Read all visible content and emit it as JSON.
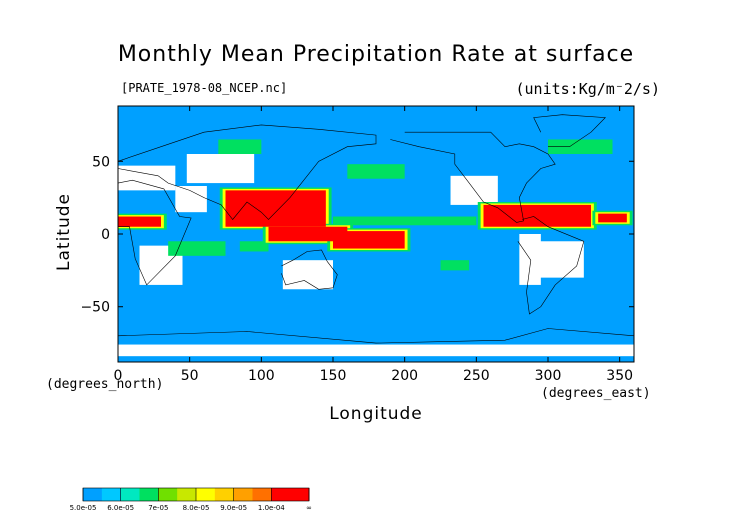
{
  "chart_data": {
    "type": "heatmap",
    "title": "Monthly Mean Precipitation Rate at surface",
    "source_label": "[PRATE_1978-08_NCEP.nc]",
    "units_label": "(units:Kg/m⁻2/s)",
    "xlabel": "Longitude",
    "ylabel": "Latitude",
    "x_unit_label": "(degrees_east)",
    "y_unit_label": "(degrees_north)",
    "xlim": [
      0,
      360
    ],
    "ylim": [
      -88,
      88
    ],
    "x_ticks": [
      0,
      50,
      100,
      150,
      200,
      250,
      300,
      350
    ],
    "y_ticks": [
      50,
      0,
      -50
    ],
    "colorbar": {
      "labels": [
        "5.0e-05",
        "6.0e-05",
        "7e-05",
        "8.0e-05",
        "9.0e-05",
        "1.0e-04",
        "∞"
      ],
      "colors": [
        "#00a0ff",
        "#00c8ff",
        "#00e8c0",
        "#00e060",
        "#70e000",
        "#c8e800",
        "#ffff00",
        "#ffd000",
        "#ffa000",
        "#ff7000",
        "#ff0000",
        "#ff0000"
      ],
      "below_min_color": "#ffffff"
    },
    "field_description_levels": {
      "background": "#00a0ff",
      "low": "#ffffff",
      "moderate": "#00e060",
      "high": "#ff0000"
    },
    "low_regions": [
      {
        "lon": [
          15,
          45
        ],
        "lat": [
          -35,
          -8
        ]
      },
      {
        "lon": [
          0,
          40
        ],
        "lat": [
          30,
          47
        ]
      },
      {
        "lon": [
          40,
          62
        ],
        "lat": [
          15,
          33
        ]
      },
      {
        "lon": [
          48,
          95
        ],
        "lat": [
          35,
          55
        ]
      },
      {
        "lon": [
          115,
          150
        ],
        "lat": [
          -38,
          -18
        ]
      },
      {
        "lon": [
          232,
          265
        ],
        "lat": [
          20,
          40
        ]
      },
      {
        "lon": [
          290,
          325
        ],
        "lat": [
          -30,
          -5
        ]
      },
      {
        "lon": [
          280,
          295
        ],
        "lat": [
          -35,
          0
        ]
      },
      {
        "lon": [
          0,
          360
        ],
        "lat": [
          -84,
          -76
        ]
      }
    ],
    "high_regions": [
      {
        "lon": [
          75,
          145
        ],
        "lat": [
          5,
          30
        ]
      },
      {
        "lon": [
          105,
          160
        ],
        "lat": [
          -5,
          5
        ]
      },
      {
        "lon": [
          150,
          200
        ],
        "lat": [
          -10,
          2
        ]
      },
      {
        "lon": [
          255,
          330
        ],
        "lat": [
          5,
          20
        ]
      },
      {
        "lon": [
          0,
          30
        ],
        "lat": [
          5,
          12
        ]
      },
      {
        "lon": [
          335,
          355
        ],
        "lat": [
          8,
          14
        ]
      }
    ],
    "moderate_regions": [
      {
        "lon": [
          150,
          250
        ],
        "lat": [
          6,
          12
        ]
      },
      {
        "lon": [
          35,
          75
        ],
        "lat": [
          -15,
          -5
        ]
      },
      {
        "lon": [
          85,
          105
        ],
        "lat": [
          -12,
          -5
        ]
      },
      {
        "lon": [
          225,
          245
        ],
        "lat": [
          -25,
          -18
        ]
      },
      {
        "lon": [
          70,
          100
        ],
        "lat": [
          55,
          65
        ]
      },
      {
        "lon": [
          300,
          345
        ],
        "lat": [
          55,
          65
        ]
      },
      {
        "lon": [
          160,
          200
        ],
        "lat": [
          38,
          48
        ]
      }
    ]
  }
}
